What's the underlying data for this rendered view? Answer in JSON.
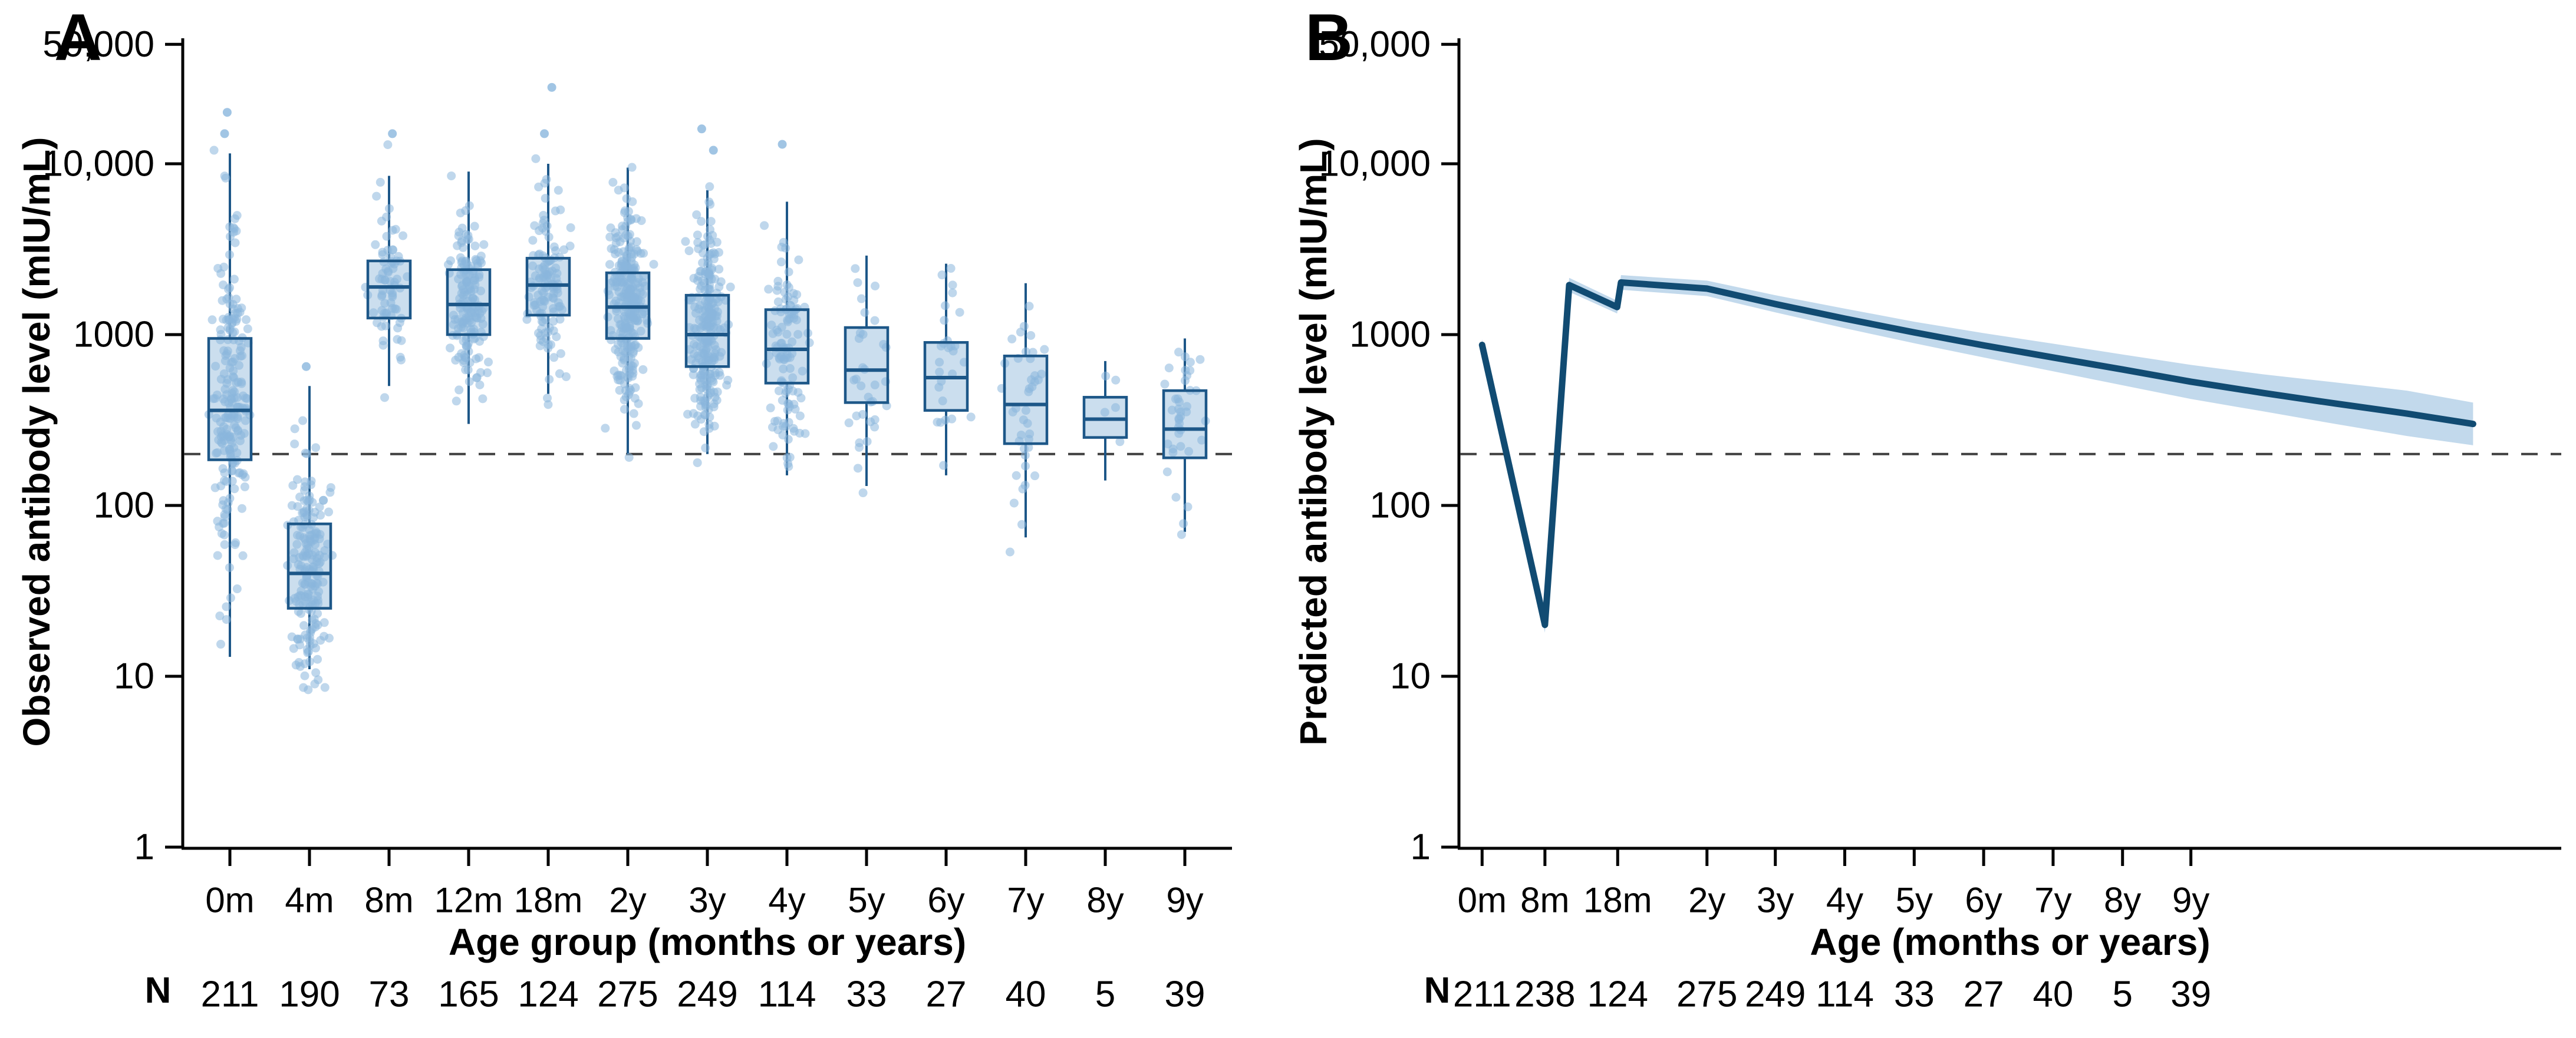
{
  "colors": {
    "background": "#ffffff",
    "axis": "#000000",
    "text": "#000000",
    "box_fill": "#cbdeee",
    "box_stroke": "#1d5788",
    "whisker": "#1d5788",
    "point": "#8ab6dd",
    "line": "#114b72",
    "band": "#c2d9ec",
    "threshold": "#3f3f3f"
  },
  "chart_data": [
    {
      "type": "box",
      "panel": "A",
      "ylabel": "Observed antibody level (mIU/mL)",
      "xlabel": "Age group (months or years)",
      "n_label": "N",
      "yscale": "log",
      "ylim": [
        1,
        50000
      ],
      "threshold": 200,
      "legend": "none",
      "y_ticks": [
        {
          "v": 50000,
          "label": "50,000"
        },
        {
          "v": 10000,
          "label": "10,000"
        },
        {
          "v": 1000,
          "label": "1000"
        },
        {
          "v": 100,
          "label": "100"
        },
        {
          "v": 10,
          "label": "10"
        },
        {
          "v": 1,
          "label": "1"
        }
      ],
      "groups": [
        {
          "cat": "0m",
          "n": 211,
          "whisker_low": 13,
          "q1": 185,
          "median": 360,
          "q3": 950,
          "whisker_high": 11500,
          "point_max": 20000,
          "outliers": [
            20000,
            15000
          ]
        },
        {
          "cat": "4m",
          "n": 190,
          "whisker_low": 11,
          "q1": 25,
          "median": 40,
          "q3": 78,
          "whisker_high": 500,
          "point_max": 700,
          "outliers": [
            650
          ]
        },
        {
          "cat": "8m",
          "n": 73,
          "whisker_low": 500,
          "q1": 1250,
          "median": 1900,
          "q3": 2700,
          "whisker_high": 8500,
          "point_max": 15000,
          "outliers": [
            15000
          ]
        },
        {
          "cat": "12m",
          "n": 165,
          "whisker_low": 300,
          "q1": 1000,
          "median": 1500,
          "q3": 2400,
          "whisker_high": 9000,
          "point_max": 11000,
          "outliers": []
        },
        {
          "cat": "18m",
          "n": 124,
          "whisker_low": 450,
          "q1": 1300,
          "median": 1950,
          "q3": 2800,
          "whisker_high": 10000,
          "point_max": 28000,
          "outliers": [
            28000,
            15000
          ]
        },
        {
          "cat": "2y",
          "n": 275,
          "whisker_low": 200,
          "q1": 950,
          "median": 1450,
          "q3": 2300,
          "whisker_high": 9500,
          "point_max": 12000,
          "outliers": []
        },
        {
          "cat": "3y",
          "n": 249,
          "whisker_low": 200,
          "q1": 650,
          "median": 1000,
          "q3": 1700,
          "whisker_high": 7000,
          "point_max": 16000,
          "outliers": [
            16000,
            12000
          ]
        },
        {
          "cat": "4y",
          "n": 114,
          "whisker_low": 150,
          "q1": 520,
          "median": 820,
          "q3": 1400,
          "whisker_high": 6000,
          "point_max": 13000,
          "outliers": [
            13000
          ]
        },
        {
          "cat": "5y",
          "n": 33,
          "whisker_low": 130,
          "q1": 400,
          "median": 620,
          "q3": 1100,
          "whisker_high": 2900,
          "point_max": 3200,
          "outliers": []
        },
        {
          "cat": "6y",
          "n": 27,
          "whisker_low": 150,
          "q1": 360,
          "median": 560,
          "q3": 900,
          "whisker_high": 2600,
          "point_max": 2800,
          "outliers": []
        },
        {
          "cat": "7y",
          "n": 40,
          "whisker_low": 65,
          "q1": 230,
          "median": 390,
          "q3": 750,
          "whisker_high": 2000,
          "point_max": 2200,
          "outliers": []
        },
        {
          "cat": "8y",
          "n": 5,
          "whisker_low": 140,
          "q1": 250,
          "median": 320,
          "q3": 430,
          "whisker_high": 700,
          "point_max": 700,
          "outliers": []
        },
        {
          "cat": "9y",
          "n": 39,
          "whisker_low": 70,
          "q1": 190,
          "median": 280,
          "q3": 470,
          "whisker_high": 950,
          "point_max": 1100,
          "outliers": []
        }
      ]
    },
    {
      "type": "line",
      "panel": "B",
      "ylabel": "Predicted antibody level (mIU/mL)",
      "xlabel": "Age (months or years)",
      "n_label": "N",
      "yscale": "log",
      "ylim": [
        1,
        50000
      ],
      "threshold": 200,
      "legend": "none",
      "y_ticks": [
        {
          "v": 50000,
          "label": "50,000"
        },
        {
          "v": 10000,
          "label": "10,000"
        },
        {
          "v": 1000,
          "label": "1000"
        },
        {
          "v": 100,
          "label": "100"
        },
        {
          "v": 10,
          "label": "10"
        },
        {
          "v": 1,
          "label": "1"
        }
      ],
      "x_ticks": [
        {
          "label": "0m",
          "f": 0.021,
          "n": 211
        },
        {
          "label": "8m",
          "f": 0.078,
          "n": 238
        },
        {
          "label": "18m",
          "f": 0.144,
          "n": 124
        },
        {
          "label": "2y",
          "f": 0.225,
          "n": 275
        },
        {
          "label": "3y",
          "f": 0.287,
          "n": 249
        },
        {
          "label": "4y",
          "f": 0.35,
          "n": 114
        },
        {
          "label": "5y",
          "f": 0.413,
          "n": 33
        },
        {
          "label": "6y",
          "f": 0.476,
          "n": 27
        },
        {
          "label": "7y",
          "f": 0.539,
          "n": 40
        },
        {
          "label": "8y",
          "f": 0.602,
          "n": 5
        },
        {
          "label": "9y",
          "f": 0.664,
          "n": 39
        }
      ],
      "line": [
        [
          0.021,
          870
        ],
        [
          0.078,
          20
        ],
        [
          0.1,
          1950
        ],
        [
          0.1435,
          1450
        ],
        [
          0.147,
          2020
        ],
        [
          0.225,
          1860
        ],
        [
          0.287,
          1510
        ],
        [
          0.35,
          1240
        ],
        [
          0.413,
          1030
        ],
        [
          0.476,
          865
        ],
        [
          0.539,
          735
        ],
        [
          0.602,
          625
        ],
        [
          0.664,
          530
        ],
        [
          0.73,
          455
        ],
        [
          0.795,
          395
        ],
        [
          0.86,
          345
        ],
        [
          0.92,
          300
        ]
      ],
      "band": [
        [
          0.021,
          800,
          940
        ],
        [
          0.078,
          18,
          23
        ],
        [
          0.1,
          1780,
          2150
        ],
        [
          0.1435,
          1330,
          1580
        ],
        [
          0.147,
          1830,
          2230
        ],
        [
          0.225,
          1680,
          2070
        ],
        [
          0.287,
          1350,
          1700
        ],
        [
          0.35,
          1090,
          1420
        ],
        [
          0.413,
          890,
          1190
        ],
        [
          0.476,
          735,
          1020
        ],
        [
          0.539,
          610,
          885
        ],
        [
          0.602,
          505,
          765
        ],
        [
          0.664,
          420,
          665
        ],
        [
          0.73,
          355,
          585
        ],
        [
          0.795,
          300,
          525
        ],
        [
          0.86,
          255,
          470
        ],
        [
          0.92,
          225,
          400
        ]
      ]
    }
  ]
}
